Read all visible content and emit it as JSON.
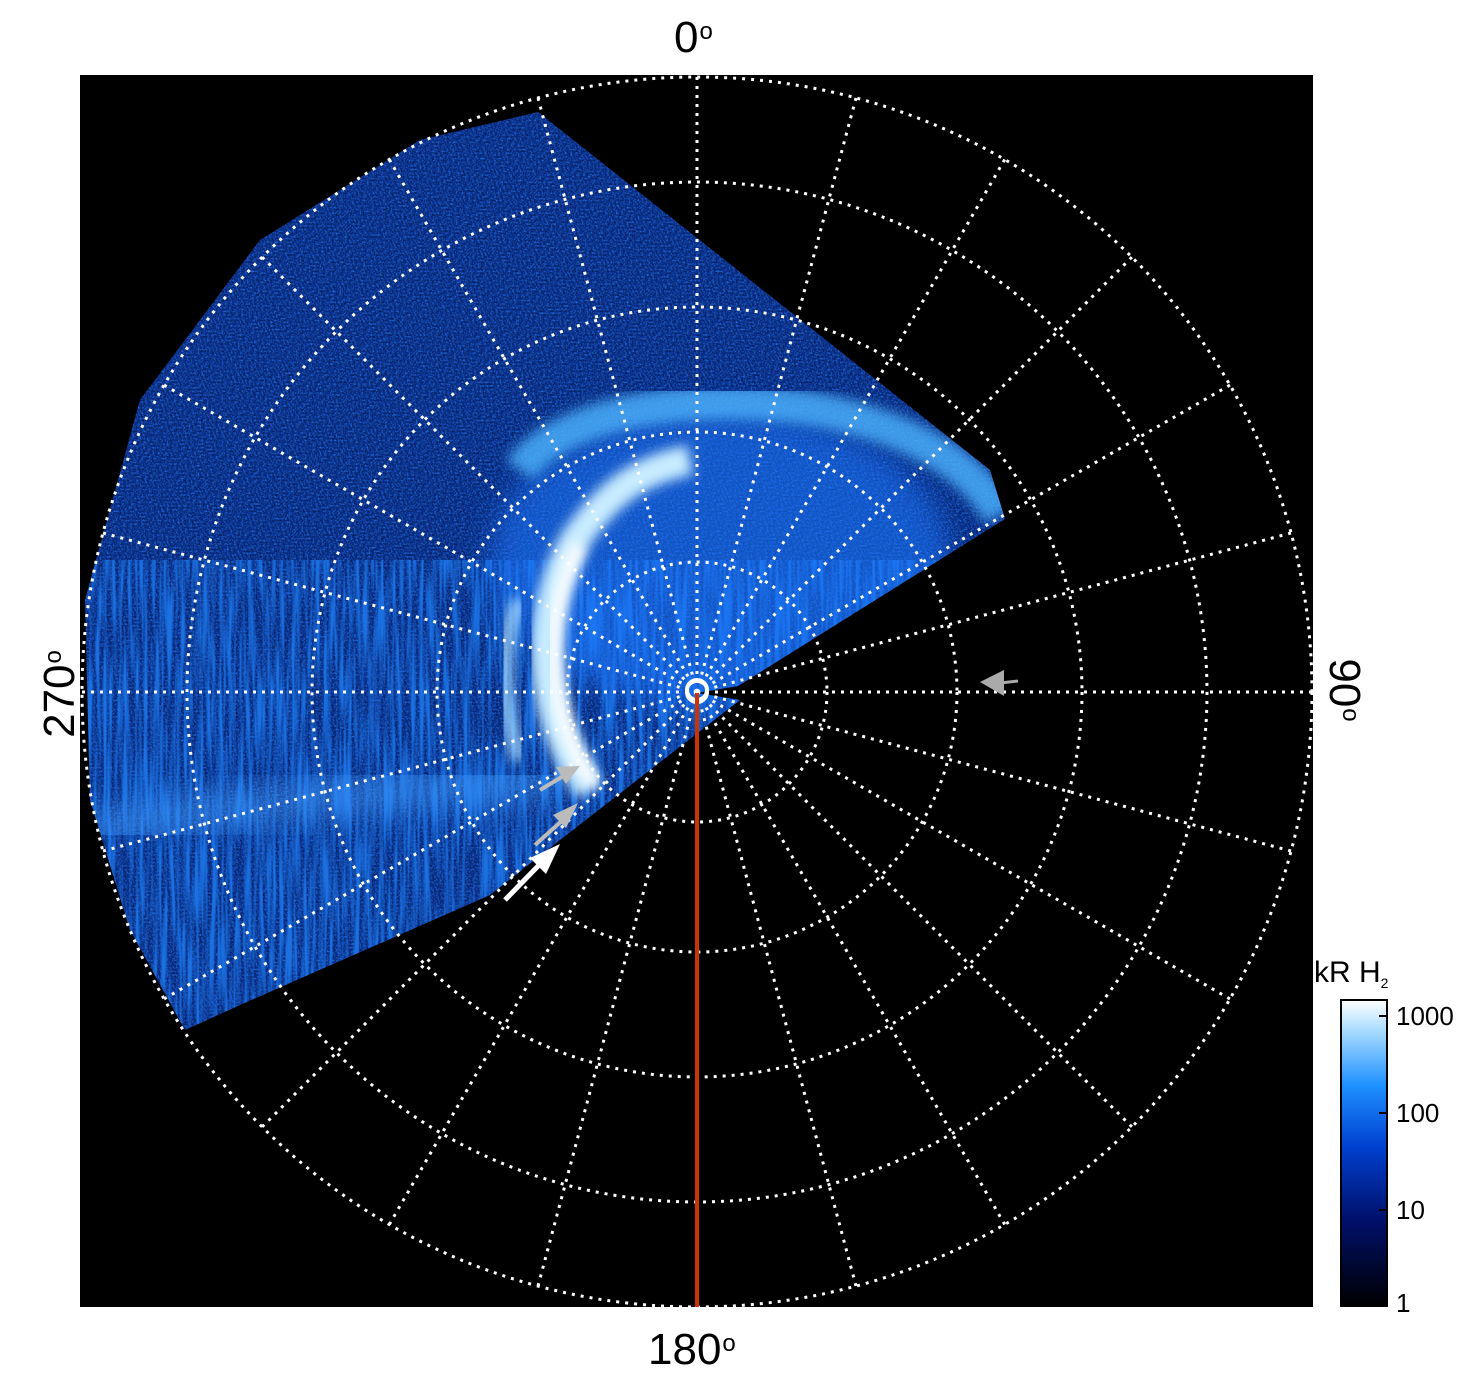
{
  "figure": {
    "description_type": "polar projection of auroral emission",
    "background": "#000000",
    "grid_color": "#ffffff",
    "meridian_line_color": "#cc3300"
  },
  "axes": {
    "top": {
      "value": "0",
      "unit": "o"
    },
    "right": {
      "value": "90",
      "unit": "o"
    },
    "bottom": {
      "value": "180",
      "unit": "o"
    },
    "left": {
      "value": "270",
      "unit": "o"
    }
  },
  "colorbar": {
    "title_main": "kR H",
    "title_sub": "2",
    "scale": "log",
    "range": [
      1,
      1000
    ],
    "ticks": [
      "1000",
      "100",
      "10",
      "1"
    ],
    "colors": [
      "#000000",
      "#00106a",
      "#0040d0",
      "#1e90ff",
      "#a8dcff",
      "#ffffff"
    ]
  },
  "annotations": {
    "arrows": [
      {
        "color": "#ffffff",
        "name": "white-arrow"
      },
      {
        "color": "#bbbbbb",
        "name": "gray-arrow-lower"
      },
      {
        "color": "#bbbbbb",
        "name": "gray-arrow-upper"
      },
      {
        "color": "#aaaaaa",
        "name": "gray-arrow-right"
      }
    ]
  }
}
